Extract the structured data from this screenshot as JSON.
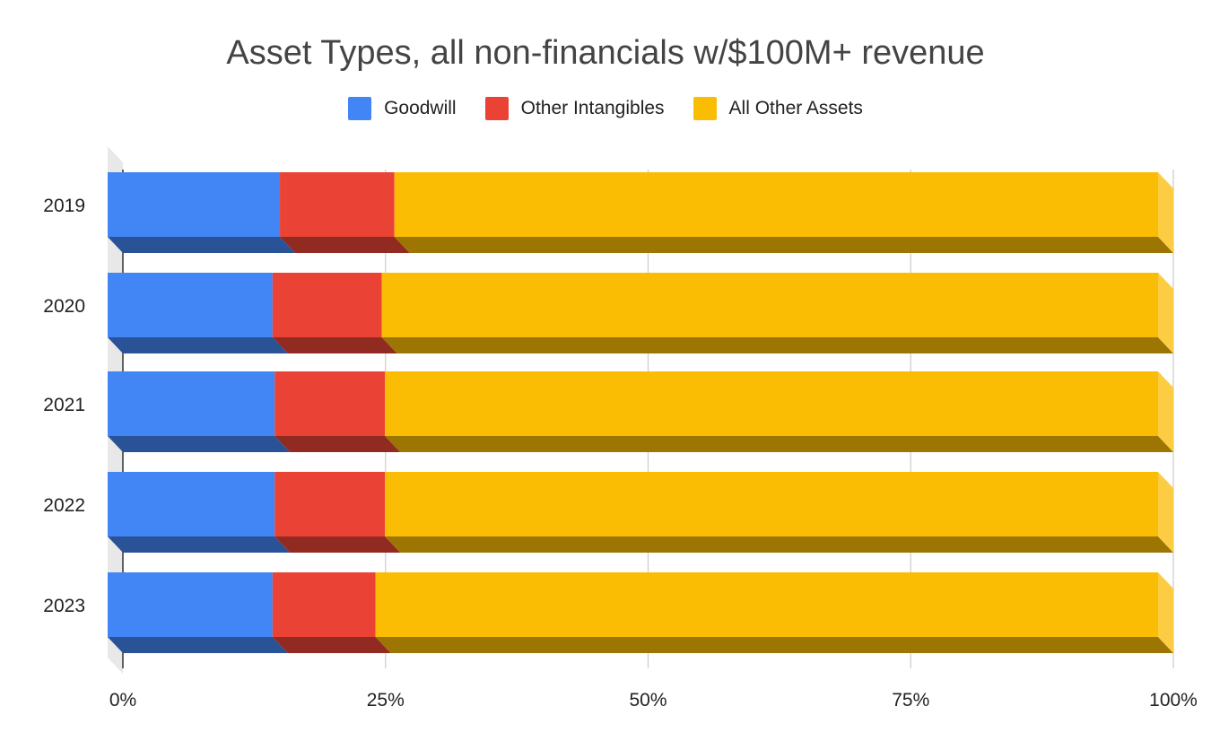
{
  "chart_data": {
    "type": "bar",
    "orientation": "horizontal",
    "stacked": "percent",
    "style": "3d",
    "title": "Asset Types, all non-financials w/$100M+ revenue",
    "legend_position": "top",
    "categories": [
      "2019",
      "2020",
      "2021",
      "2022",
      "2023"
    ],
    "series": [
      {
        "name": "Goodwill",
        "color": "#4285F4",
        "values": [
          16.4,
          15.7,
          15.9,
          15.9,
          15.7
        ]
      },
      {
        "name": "Other Intangibles",
        "color": "#EA4335",
        "values": [
          10.9,
          10.4,
          10.5,
          10.5,
          9.8
        ]
      },
      {
        "name": "All Other Assets",
        "color": "#FBBC04",
        "values": [
          72.7,
          73.9,
          73.6,
          73.6,
          74.5
        ]
      }
    ],
    "x_ticks": [
      "0%",
      "25%",
      "50%",
      "75%",
      "100%"
    ],
    "xlim": [
      0,
      100
    ],
    "grid": true
  }
}
